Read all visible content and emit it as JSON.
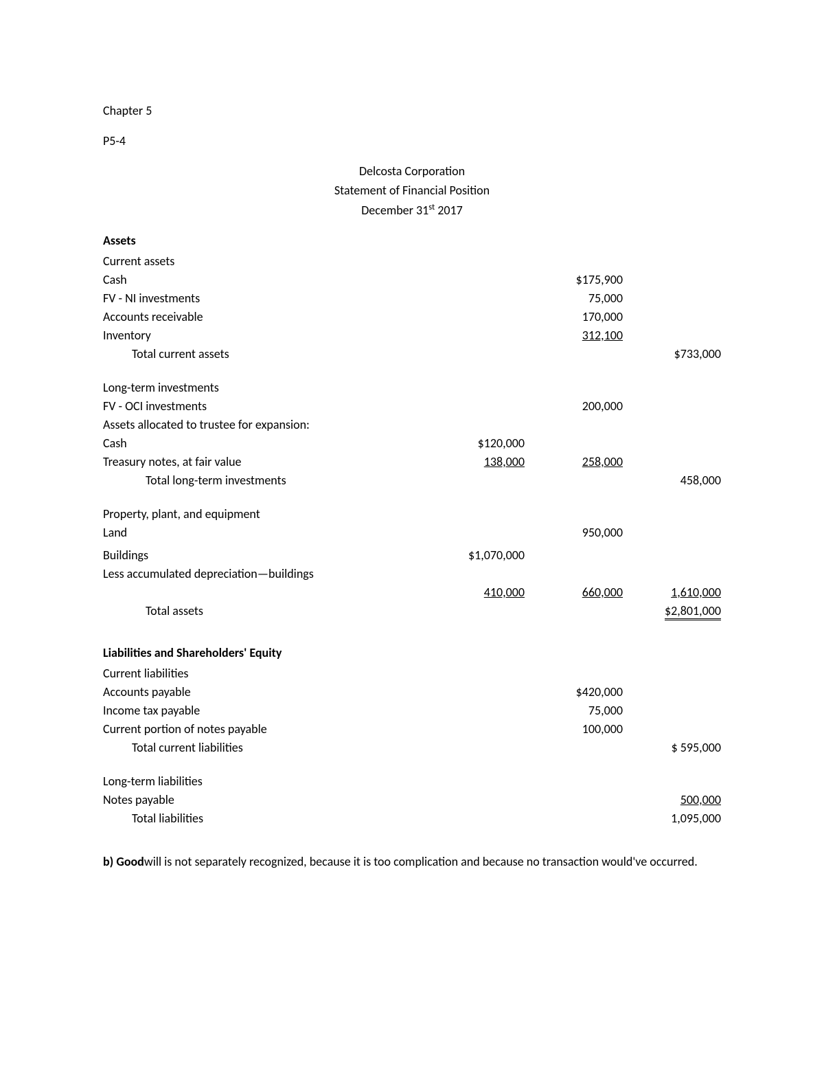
{
  "chapter": "Chapter 5",
  "problem": "P5-4",
  "header": {
    "company": "Delcosta Corporation",
    "statement": "Statement of Financial Position",
    "date_prefix": "December 31",
    "date_sup": "st",
    "date_year": " 2017"
  },
  "sections": {
    "assets_heading": "Assets",
    "current_assets": "Current assets",
    "cash": "Cash",
    "cash_val": "$175,900",
    "fv_ni": "FV - NI investments",
    "fv_ni_val": "75,000",
    "ar": "Accounts receivable",
    "ar_val": "170,000",
    "inv": "Inventory",
    "inv_val": " 312,100 ",
    "total_current_assets": "Total current assets",
    "total_current_assets_val": "$733,000",
    "lti_heading": "Long-term investments",
    "fv_oci": "FV - OCI investments",
    "fv_oci_val": "200,000",
    "trustee": "Assets allocated to trustee for expansion:",
    "trustee_cash": "Cash",
    "trustee_cash_val": "$120,000",
    "treasury": "Treasury notes, at fair value",
    "treasury_val": " 138,000 ",
    "treasury_sum": " 258,000 ",
    "total_lti": "Total long-term investments",
    "total_lti_val": "458,000",
    "ppe_heading": "Property, plant, and equipment",
    "land": "Land",
    "land_val": "950,000",
    "buildings": "Buildings",
    "buildings_val": "$1,070,000",
    "accdep": "Less accumulated depreciation—buildings",
    "accdep_val": " 410,000 ",
    "net_buildings": " 660,000 ",
    "ppe_total": " 1,610,000 ",
    "total_assets": "Total assets",
    "total_assets_val": "$2,801,000",
    "lse_heading": "Liabilities and Shareholders' Equity",
    "current_liab": "Current liabilities",
    "ap": "Accounts payable",
    "ap_val": "$420,000",
    "tax": "Income tax payable",
    "tax_val": "75,000",
    "cpnp": "Current portion of notes payable",
    "cpnp_val": "100,000",
    "total_cl": "Total current liabilities",
    "total_cl_val": "$  595,000",
    "ltl_heading": "Long-term liabilities",
    "np": "Notes payable",
    "np_val": "  500,000  ",
    "total_liab": "Total liabilities",
    "total_liab_val": "1,095,000"
  },
  "note": {
    "b_prefix": "b) ",
    "b_bold": "Good",
    "b_rest": "will is not separately recognized, because it is too complication and because no transaction would've occurred."
  }
}
